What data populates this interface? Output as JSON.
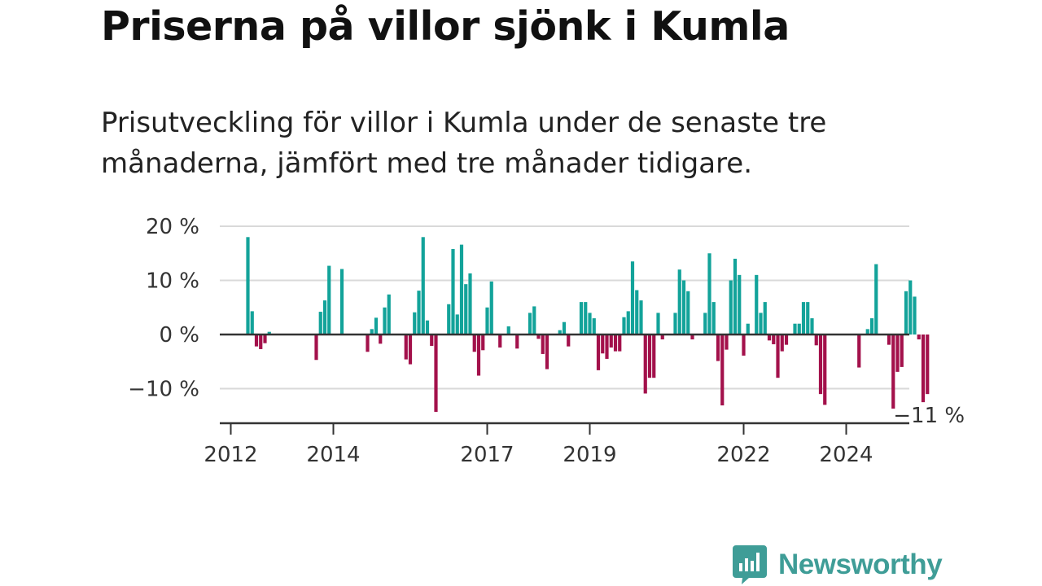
{
  "title": "Priserna på villor sjönk i Kumla",
  "subtitle": "Prisutveckling för villor i Kumla under de senaste tre månaderna, jämfört med tre månader tidigare.",
  "logo": {
    "text": "Newsworthy",
    "icon": "newsworthy-chart-bubble-icon",
    "color": "#3f9d97"
  },
  "chart_data": {
    "type": "bar",
    "ylim": [
      -16,
      20
    ],
    "yticks": [
      20,
      10,
      0,
      -10
    ],
    "ytick_labels": [
      "20 %",
      "10 %",
      "0 %",
      "−10 %"
    ],
    "xticks": [
      2012,
      2014,
      2017,
      2019,
      2022,
      2024
    ],
    "xtick_labels": [
      "2012",
      "2014",
      "2017",
      "2019",
      "2022",
      "2024"
    ],
    "annotation": "−11 %",
    "grid": true,
    "colors": {
      "positive": "#13a39a",
      "negative": "#a3114b",
      "axis": "#333333",
      "grid": "#d9d9d9"
    },
    "x_start": "2012-01",
    "values": [
      null,
      null,
      null,
      null,
      18,
      4.3,
      -2.2,
      -2.7,
      -1.6,
      0.5,
      null,
      null,
      null,
      null,
      null,
      null,
      null,
      null,
      null,
      null,
      -4.7,
      4.2,
      6.3,
      12.7,
      0.1,
      null,
      12.1,
      null,
      null,
      null,
      null,
      null,
      -3.2,
      1,
      3.1,
      -1.7,
      5,
      7.4,
      null,
      null,
      null,
      -4.6,
      -5.5,
      4.1,
      8.1,
      18,
      2.6,
      -2.1,
      -14.3,
      null,
      null,
      5.6,
      15.8,
      3.7,
      16.6,
      9.3,
      11.3,
      -3.2,
      -7.6,
      -2.9,
      5,
      9.8,
      null,
      -2.4,
      0,
      1.5,
      null,
      -2.6,
      null,
      null,
      4,
      5.2,
      -0.8,
      -3.6,
      -6.4,
      null,
      null,
      0.8,
      2.3,
      -2.2,
      null,
      null,
      6,
      6,
      4,
      3,
      -6.6,
      -3.5,
      -4.5,
      -2.4,
      -3.1,
      -3.1,
      3.2,
      4.3,
      13.5,
      8.2,
      6.3,
      -10.9,
      -8,
      -8,
      4,
      -0.9,
      null,
      null,
      4,
      12,
      10,
      8,
      -0.9,
      null,
      null,
      4,
      15,
      6,
      -4.9,
      -13.1,
      -2.8,
      10,
      14,
      11,
      -3.9,
      2,
      null,
      11,
      4,
      6,
      -1.1,
      -1.8,
      -8,
      -3.1,
      -1.9,
      null,
      2,
      2,
      6,
      6,
      3,
      -2,
      -11,
      -13,
      null,
      null,
      null,
      null,
      null,
      null,
      null,
      -6.1,
      null,
      1,
      3,
      13,
      null,
      null,
      -1.9,
      -13.7,
      -6.9,
      -6,
      8,
      10,
      7,
      -0.9,
      -12.5,
      -11
    ]
  }
}
